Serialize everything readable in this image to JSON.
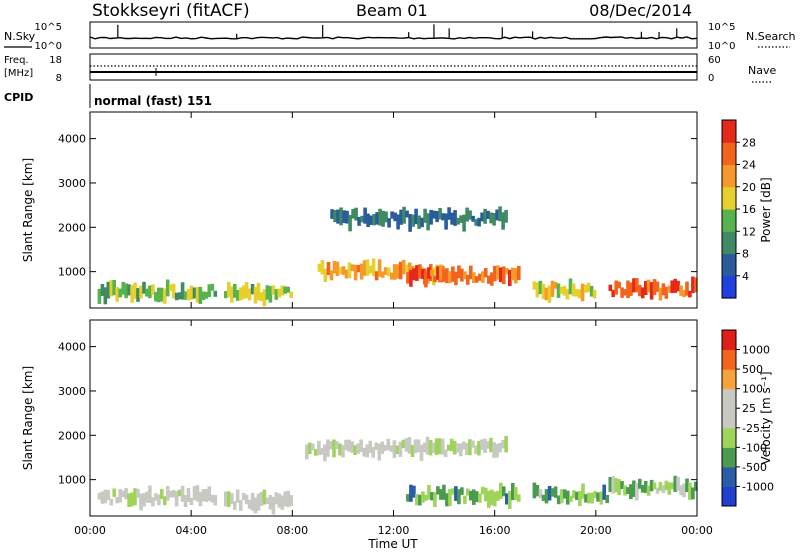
{
  "header": {
    "station": "Stokkseyri (fitACF)",
    "beam": "Beam 01",
    "date": "08/Dec/2014"
  },
  "strip_labels": {
    "nsky": "N.Sky",
    "nsearch": "N.Search",
    "freq_line1": "Freq.",
    "freq_line2": "[MHz]",
    "nave": "Nave",
    "cpid": "CPID",
    "cpid_value": "normal (fast) 151"
  },
  "noise_ticks": {
    "left": [
      "10^5",
      "10^0"
    ],
    "right": [
      "10^5",
      "10^0"
    ]
  },
  "freq_ticks": {
    "left": [
      "18",
      "8"
    ],
    "right": [
      "60",
      "0"
    ]
  },
  "colorbars": {
    "power": {
      "label": "Power [dB]",
      "colors": [
        "#1f3fe0",
        "#2a5c9c",
        "#3f8a64",
        "#57b34e",
        "#e6d02e",
        "#f59a2a",
        "#f2641d",
        "#e6281a"
      ],
      "ticks": [
        "4",
        "8",
        "12",
        "16",
        "20",
        "24",
        "28"
      ]
    },
    "velocity": {
      "label": "Velocity [m s⁻¹]",
      "colors": [
        "#e02018",
        "#f5641e",
        "#f7a23a",
        "#c9c9c3",
        "#c9c9c3",
        "#9ed45a",
        "#4a9a50",
        "#2a5ca8",
        "#2040d0"
      ],
      "ticks": [
        "1000",
        "500",
        "100",
        "25",
        "-25",
        "-100",
        "-500",
        "-1000"
      ]
    }
  },
  "chart_data": [
    {
      "type": "heatmap",
      "title": "",
      "xlabel": "Time UT",
      "ylabel": "Slant Range [km]",
      "xticks": [
        "00:00",
        "04:00",
        "08:00",
        "12:00",
        "16:00",
        "20:00",
        "00:00"
      ],
      "xlim": [
        0,
        24
      ],
      "yticks": [
        1000,
        2000,
        3000,
        4000
      ],
      "ylim": [
        180,
        4600
      ],
      "colorbar": "Power [dB]",
      "echo_regions": [
        {
          "t_start": 0.3,
          "t_end": 5.0,
          "range_km": 540,
          "value_db": 14
        },
        {
          "t_start": 5.3,
          "t_end": 8.0,
          "range_km": 500,
          "value_db": 15
        },
        {
          "t_start": 9.0,
          "t_end": 14.0,
          "range_km": 1000,
          "value_db": 22
        },
        {
          "t_start": 12.5,
          "t_end": 17.0,
          "range_km": 900,
          "value_db": 26
        },
        {
          "t_start": 9.5,
          "t_end": 16.5,
          "range_km": 2200,
          "value_db": 8
        },
        {
          "t_start": 17.5,
          "t_end": 20.0,
          "range_km": 600,
          "value_db": 18
        },
        {
          "t_start": 20.5,
          "t_end": 24.0,
          "range_km": 600,
          "value_db": 27
        }
      ]
    },
    {
      "type": "heatmap",
      "title": "",
      "xlabel": "Time UT",
      "ylabel": "Slant Range [km]",
      "xticks": [
        "00:00",
        "04:00",
        "08:00",
        "12:00",
        "16:00",
        "20:00",
        "00:00"
      ],
      "xlim": [
        0,
        24
      ],
      "yticks": [
        1000,
        2000,
        3000,
        4000
      ],
      "ylim": [
        180,
        4600
      ],
      "colorbar": "Velocity [m s⁻¹]",
      "echo_regions": [
        {
          "t_start": 0.3,
          "t_end": 5.0,
          "range_km": 600,
          "value_ms": 80
        },
        {
          "t_start": 5.3,
          "t_end": 8.0,
          "range_km": 520,
          "value_ms": 120
        },
        {
          "t_start": 8.5,
          "t_end": 16.5,
          "range_km": 1700,
          "value_ms": 0
        },
        {
          "t_start": 12.5,
          "t_end": 17.0,
          "range_km": 650,
          "value_ms": -450
        },
        {
          "t_start": 17.5,
          "t_end": 20.5,
          "range_km": 650,
          "value_ms": -400
        },
        {
          "t_start": 20.5,
          "t_end": 24.0,
          "range_km": 800,
          "value_ms": -300
        }
      ]
    }
  ]
}
